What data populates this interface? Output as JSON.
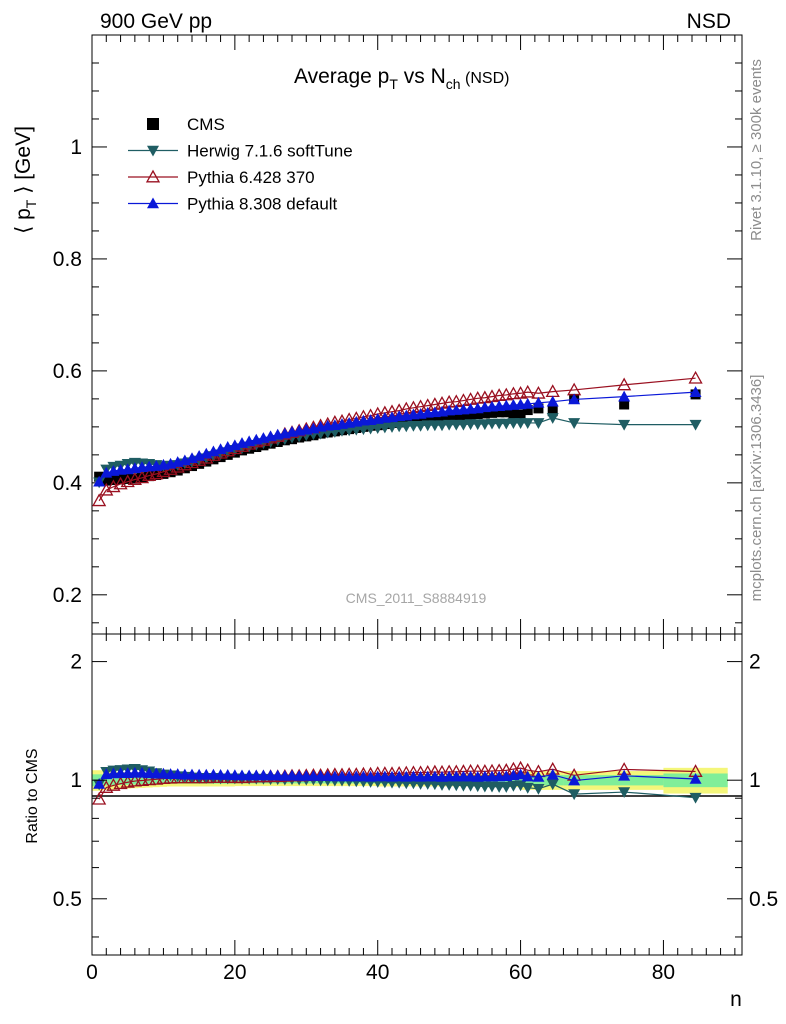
{
  "header": {
    "left": "900 GeV pp",
    "right": "NSD"
  },
  "side": {
    "rivet": "Rivet 3.1.10, ≥ 300k events",
    "mcplots": "mcplots.cern.ch [arXiv:1306.3436]"
  },
  "colors": {
    "cms": "#000000",
    "herwig": "#1f5d63",
    "pythia6": "#9a1020",
    "pythia8": "#0a18d8",
    "band_inner": "#80ee99",
    "band_outer": "#f4f67a"
  },
  "chart_data": {
    "type": "scatter",
    "title_parts": {
      "pre": "Average p",
      "sub1": "T",
      "mid": " vs N",
      "sub2": "ch",
      "post": " (NSD)"
    },
    "analysis": "CMS_2011_S8884919",
    "ylabel_parts": {
      "pre": "⟨ p",
      "sub": "T",
      "post": " ⟩ [GeV]"
    },
    "xlabel": "n",
    "ratio_ylabel": "Ratio to CMS",
    "xlim": [
      0,
      91
    ],
    "ylim": [
      0.13,
      1.2
    ],
    "ratio_ylim": [
      0.36,
      2.35
    ],
    "xticks": [
      0,
      20,
      40,
      60,
      80
    ],
    "yticks": [
      0.2,
      0.4,
      0.6,
      0.8,
      1
    ],
    "ratio_yticks": [
      0.5,
      1,
      2
    ],
    "x": [
      1,
      2,
      3,
      4,
      5,
      6,
      7,
      8,
      9,
      10,
      11,
      12,
      13,
      14,
      15,
      16,
      17,
      18,
      19,
      20,
      21,
      22,
      23,
      24,
      25,
      26,
      27,
      28,
      29,
      30,
      31,
      32,
      33,
      34,
      35,
      36,
      37,
      38,
      39,
      40,
      41,
      42,
      43,
      44,
      45,
      46,
      47,
      48,
      49,
      50,
      51,
      52,
      53,
      54,
      55,
      56,
      57,
      58,
      59,
      60,
      61,
      62.5,
      64.5,
      67.5,
      74.5,
      84.5
    ],
    "series": [
      {
        "name": "CMS",
        "marker": "square",
        "values": [
          0.411,
          0.404,
          0.405,
          0.406,
          0.407,
          0.408,
          0.41,
          0.412,
          0.414,
          0.416,
          0.419,
          0.422,
          0.426,
          0.43,
          0.434,
          0.438,
          0.442,
          0.446,
          0.45,
          0.454,
          0.458,
          0.461,
          0.464,
          0.467,
          0.47,
          0.473,
          0.476,
          0.478,
          0.481,
          0.483,
          0.485,
          0.488,
          0.49,
          0.492,
          0.494,
          0.496,
          0.498,
          0.5,
          0.502,
          0.503,
          0.505,
          0.507,
          0.508,
          0.51,
          0.511,
          0.513,
          0.514,
          0.515,
          0.517,
          0.518,
          0.519,
          0.52,
          0.521,
          0.523,
          0.524,
          0.525,
          0.526,
          0.526,
          0.524,
          0.522,
          0.53,
          0.533,
          0.528,
          0.55,
          0.54,
          0.558
        ]
      },
      {
        "name": "Herwig 7.1.6 softTune",
        "marker": "triangle-down",
        "values": [
          0.401,
          0.424,
          0.429,
          0.431,
          0.434,
          0.436,
          0.435,
          0.434,
          0.432,
          0.43,
          0.431,
          0.432,
          0.435,
          0.437,
          0.44,
          0.444,
          0.448,
          0.451,
          0.455,
          0.459,
          0.462,
          0.465,
          0.468,
          0.471,
          0.473,
          0.476,
          0.478,
          0.481,
          0.483,
          0.485,
          0.487,
          0.488,
          0.49,
          0.491,
          0.493,
          0.494,
          0.495,
          0.496,
          0.497,
          0.498,
          0.499,
          0.5,
          0.501,
          0.501,
          0.502,
          0.502,
          0.503,
          0.503,
          0.503,
          0.504,
          0.504,
          0.504,
          0.505,
          0.505,
          0.505,
          0.506,
          0.506,
          0.506,
          0.507,
          0.507,
          0.507,
          0.507,
          0.516,
          0.507,
          0.504,
          0.504
        ]
      },
      {
        "name": "Pythia 6.428 370",
        "marker": "triangle-up-open",
        "values": [
          0.368,
          0.387,
          0.393,
          0.398,
          0.402,
          0.406,
          0.409,
          0.413,
          0.416,
          0.42,
          0.424,
          0.428,
          0.432,
          0.436,
          0.44,
          0.444,
          0.449,
          0.453,
          0.457,
          0.461,
          0.465,
          0.469,
          0.473,
          0.476,
          0.48,
          0.483,
          0.487,
          0.49,
          0.493,
          0.496,
          0.499,
          0.502,
          0.505,
          0.508,
          0.51,
          0.513,
          0.515,
          0.518,
          0.52,
          0.523,
          0.525,
          0.527,
          0.529,
          0.532,
          0.534,
          0.536,
          0.538,
          0.54,
          0.542,
          0.544,
          0.545,
          0.547,
          0.549,
          0.551,
          0.552,
          0.554,
          0.556,
          0.557,
          0.559,
          0.56,
          0.562,
          0.56,
          0.563,
          0.566,
          0.575,
          0.587
        ]
      },
      {
        "name": "Pythia 8.308 default",
        "marker": "triangle-up",
        "values": [
          0.402,
          0.418,
          0.421,
          0.423,
          0.424,
          0.426,
          0.428,
          0.429,
          0.43,
          0.432,
          0.434,
          0.437,
          0.44,
          0.444,
          0.448,
          0.452,
          0.456,
          0.46,
          0.464,
          0.467,
          0.471,
          0.474,
          0.477,
          0.48,
          0.483,
          0.486,
          0.488,
          0.491,
          0.493,
          0.495,
          0.497,
          0.5,
          0.502,
          0.503,
          0.505,
          0.507,
          0.509,
          0.511,
          0.512,
          0.514,
          0.516,
          0.517,
          0.519,
          0.52,
          0.522,
          0.523,
          0.525,
          0.526,
          0.527,
          0.529,
          0.53,
          0.531,
          0.532,
          0.533,
          0.535,
          0.536,
          0.537,
          0.538,
          0.539,
          0.54,
          0.541,
          0.543,
          0.545,
          0.549,
          0.554,
          0.562
        ]
      }
    ],
    "ratio_series": [
      {
        "name": "Herwig 7.1.6 softTune",
        "values": [
          0.976,
          1.05,
          1.059,
          1.062,
          1.066,
          1.069,
          1.061,
          1.053,
          1.043,
          1.034,
          1.029,
          1.024,
          1.021,
          1.016,
          1.014,
          1.014,
          1.014,
          1.011,
          1.011,
          1.011,
          1.009,
          1.009,
          1.009,
          1.009,
          1.006,
          1.006,
          1.004,
          1.006,
          1.004,
          1.004,
          1.004,
          1.0,
          1.0,
          0.998,
          0.998,
          0.996,
          0.994,
          0.992,
          0.99,
          0.99,
          0.988,
          0.986,
          0.986,
          0.982,
          0.982,
          0.979,
          0.979,
          0.977,
          0.973,
          0.973,
          0.971,
          0.969,
          0.969,
          0.966,
          0.964,
          0.964,
          0.962,
          0.962,
          0.968,
          0.971,
          0.957,
          0.951,
          0.977,
          0.922,
          0.933,
          0.903
        ]
      },
      {
        "name": "Pythia 6.428 370",
        "values": [
          0.895,
          0.958,
          0.97,
          0.98,
          0.988,
          0.995,
          0.998,
          1.002,
          1.005,
          1.01,
          1.012,
          1.014,
          1.014,
          1.014,
          1.014,
          1.014,
          1.016,
          1.016,
          1.016,
          1.015,
          1.015,
          1.017,
          1.019,
          1.019,
          1.021,
          1.021,
          1.023,
          1.025,
          1.025,
          1.027,
          1.029,
          1.029,
          1.031,
          1.033,
          1.032,
          1.034,
          1.034,
          1.036,
          1.036,
          1.04,
          1.04,
          1.039,
          1.041,
          1.043,
          1.045,
          1.045,
          1.047,
          1.049,
          1.048,
          1.05,
          1.05,
          1.052,
          1.054,
          1.054,
          1.053,
          1.055,
          1.057,
          1.059,
          1.067,
          1.073,
          1.06,
          1.051,
          1.066,
          1.029,
          1.065,
          1.052
        ]
      },
      {
        "name": "Pythia 8.308 default",
        "values": [
          0.978,
          1.035,
          1.04,
          1.042,
          1.042,
          1.044,
          1.044,
          1.041,
          1.039,
          1.038,
          1.036,
          1.036,
          1.033,
          1.033,
          1.032,
          1.032,
          1.032,
          1.031,
          1.031,
          1.029,
          1.028,
          1.028,
          1.028,
          1.028,
          1.028,
          1.027,
          1.025,
          1.027,
          1.025,
          1.025,
          1.025,
          1.025,
          1.024,
          1.022,
          1.022,
          1.022,
          1.022,
          1.022,
          1.02,
          1.022,
          1.022,
          1.02,
          1.022,
          1.02,
          1.022,
          1.02,
          1.021,
          1.021,
          1.019,
          1.021,
          1.021,
          1.021,
          1.021,
          1.019,
          1.021,
          1.021,
          1.021,
          1.023,
          1.029,
          1.034,
          1.021,
          1.019,
          1.032,
          0.998,
          1.026,
          1.007
        ]
      }
    ],
    "ratio_band": {
      "x_edges": [
        0,
        1.5,
        2.5,
        3.5,
        4.5,
        5.5,
        6.5,
        7.5,
        8.5,
        9.5,
        10.5,
        20,
        40,
        55,
        60,
        66,
        80,
        89
      ],
      "inner": [
        0.035,
        0.03,
        0.028,
        0.027,
        0.026,
        0.025,
        0.024,
        0.023,
        0.022,
        0.021,
        0.02,
        0.019,
        0.02,
        0.022,
        0.03,
        0.03,
        0.04
      ],
      "outer": [
        0.06,
        0.055,
        0.052,
        0.05,
        0.048,
        0.046,
        0.044,
        0.042,
        0.04,
        0.038,
        0.036,
        0.034,
        0.036,
        0.04,
        0.055,
        0.055,
        0.075
      ]
    }
  }
}
